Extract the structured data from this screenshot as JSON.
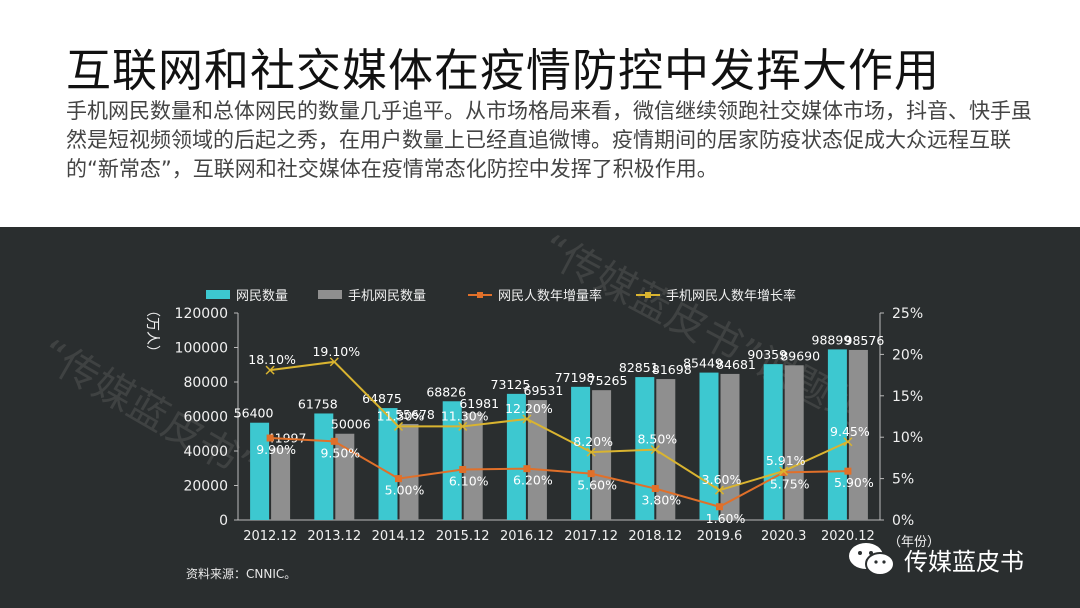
{
  "header": {
    "title": "互联网和社交媒体在疫情防控中发挥大作用",
    "description": "手机网民数量和总体网民的数量几乎追平。从市场格局来看，微信继续领跑社交媒体市场，抖音、快手虽然是短视频领域的后起之秀，在用户数量上已经直追微博。疫情期间的居家防疫状态促成大众远程互联的“新常态”，互联网和社交媒体在疫情常态化防控中发挥了积极作用。"
  },
  "source": "资料来源：CNNIC。",
  "brand": "传媒蓝皮书",
  "watermark": "“传媒蓝皮书”课题组",
  "chart_data": {
    "type": "bar",
    "categories": [
      "2012.12",
      "2013.12",
      "2014.12",
      "2015.12",
      "2016.12",
      "2017.12",
      "2018.12",
      "2019.6",
      "2020.3",
      "2020.12"
    ],
    "xlabel": "（年份）",
    "ylabel": "（万人）",
    "ylim": [
      0,
      120000
    ],
    "y_ticks": [
      "0",
      "20000",
      "40000",
      "60000",
      "80000",
      "100000",
      "120000"
    ],
    "y2lim": [
      0,
      25
    ],
    "y2_ticks": [
      "0%",
      "5%",
      "10%",
      "15%",
      "20%",
      "25%"
    ],
    "legend_position": "top",
    "series": [
      {
        "name": "网民数量",
        "kind": "bar",
        "color": "#3dc8d0",
        "values": [
          56400,
          61758,
          64875,
          68826,
          73125,
          77198,
          82851,
          85449,
          90359,
          98899
        ]
      },
      {
        "name": "手机网民数量",
        "kind": "bar",
        "color": "#8f8f8f",
        "values": [
          41997,
          50006,
          55678,
          61981,
          69531,
          75265,
          81698,
          84681,
          89690,
          98576
        ]
      },
      {
        "name": "网民人数年增量率",
        "kind": "line",
        "axis": "right",
        "color": "#e0702a",
        "values": [
          9.9,
          9.5,
          5.0,
          6.1,
          6.2,
          5.6,
          3.8,
          1.6,
          5.75,
          5.9
        ],
        "labels": [
          "9.90%",
          "9.50%",
          "5.00%",
          "6.10%",
          "6.20%",
          "5.60%",
          "3.80%",
          "1.60%",
          "5.75%",
          "5.90%"
        ]
      },
      {
        "name": "手机网民人数年增长率",
        "kind": "line",
        "axis": "right",
        "color": "#d9b430",
        "values": [
          18.1,
          19.1,
          11.3,
          11.3,
          12.2,
          8.2,
          8.5,
          3.6,
          5.91,
          9.45
        ],
        "labels": [
          "18.10%",
          "19.10%",
          "11.30%",
          "11.30%",
          "12.20%",
          "8.20%",
          "8.50%",
          "3.60%",
          "5.91%",
          "9.45%"
        ]
      }
    ]
  }
}
